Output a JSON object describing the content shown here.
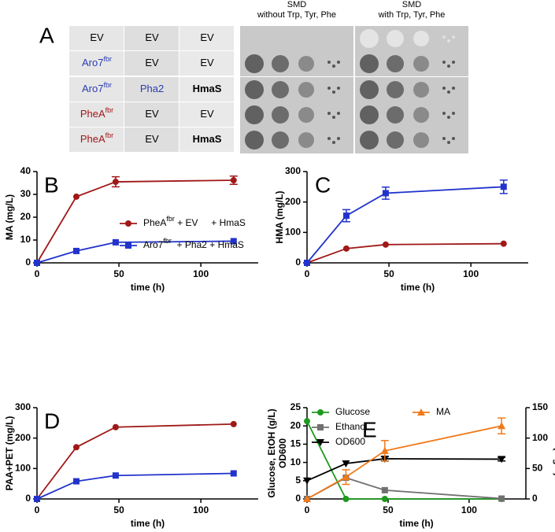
{
  "panel_a": {
    "label": "A",
    "headers": [
      [
        "SMD",
        "without Trp, Tyr, Phe"
      ],
      [
        "SMD",
        "with Trp, Tyr, Phe"
      ]
    ],
    "rows": [
      [
        {
          "text": "EV",
          "color": "#000000"
        },
        {
          "text": "EV",
          "color": "#000000"
        },
        {
          "text": "EV",
          "color": "#000000"
        }
      ],
      [
        {
          "text": "Aro7",
          "sup": "fbr",
          "color": "#2b3bb0"
        },
        {
          "text": "EV",
          "color": "#000000"
        },
        {
          "text": "EV",
          "color": "#000000"
        }
      ],
      [
        {
          "text": "Aro7",
          "sup": "fbr",
          "color": "#2b3bb0"
        },
        {
          "text": "Pha2",
          "color": "#2b3bb0"
        },
        {
          "text": "HmaS",
          "color": "#000000",
          "bold": true
        }
      ],
      [
        {
          "text": "PheA",
          "sup": "fbr",
          "color": "#a01818"
        },
        {
          "text": "EV",
          "color": "#000000"
        },
        {
          "text": "EV",
          "color": "#000000"
        }
      ],
      [
        {
          "text": "PheA",
          "sup": "fbr",
          "color": "#a01818"
        },
        {
          "text": "EV",
          "color": "#000000"
        },
        {
          "text": "HmaS",
          "color": "#000000",
          "bold": true
        }
      ]
    ]
  },
  "chart_data": [
    {
      "type": "line",
      "label": "B",
      "xlabel": "time (h)",
      "ylabel": "MA (mg/L)",
      "x": [
        0,
        24,
        48,
        120
      ],
      "xlim": [
        0,
        135
      ],
      "xticks": [
        0,
        50,
        100
      ],
      "ylim": [
        0,
        40
      ],
      "yticks": [
        0,
        10,
        20,
        30,
        40
      ],
      "series": [
        {
          "name": "PheA",
          "name_sup": "fbr",
          "name_suffix": " + EV     + HmaS",
          "color": "#a01818",
          "marker": "circle",
          "values": [
            0,
            29,
            35.5,
            36.2
          ],
          "errors": [
            null,
            null,
            2.2,
            1.8
          ]
        },
        {
          "name": "Aro7",
          "name_sup": "fbr",
          "name_suffix": "  + Pha2 + HmaS",
          "color": "#2233cc",
          "marker": "square",
          "values": [
            0,
            5.2,
            9,
            9.5
          ],
          "errors": [
            null,
            null,
            null,
            null
          ]
        }
      ]
    },
    {
      "type": "line",
      "label": "C",
      "xlabel": "time (h)",
      "ylabel": "HMA (mg/L)",
      "x": [
        0,
        24,
        48,
        120
      ],
      "xlim": [
        0,
        135
      ],
      "xticks": [
        0,
        50,
        100
      ],
      "ylim": [
        0,
        300
      ],
      "yticks": [
        0,
        100,
        200,
        300
      ],
      "series": [
        {
          "color": "#a01818",
          "marker": "circle",
          "values": [
            0,
            47,
            60,
            63
          ],
          "errors": [
            null,
            null,
            null,
            null
          ]
        },
        {
          "color": "#2233cc",
          "marker": "square",
          "values": [
            0,
            155,
            229,
            250
          ],
          "errors": [
            null,
            20,
            20,
            22
          ]
        }
      ]
    },
    {
      "type": "line",
      "label": "D",
      "xlabel": "time (h)",
      "ylabel": "PAA+PET (mg/L)",
      "x": [
        0,
        24,
        48,
        120
      ],
      "xlim": [
        0,
        135
      ],
      "xticks": [
        0,
        50,
        100
      ],
      "ylim": [
        0,
        300
      ],
      "yticks": [
        0,
        100,
        200,
        300
      ],
      "series": [
        {
          "color": "#a01818",
          "marker": "circle",
          "values": [
            0,
            170,
            236,
            246
          ],
          "errors": [
            null,
            null,
            null,
            null
          ]
        },
        {
          "color": "#2233cc",
          "marker": "square",
          "values": [
            0,
            58,
            77,
            84
          ],
          "errors": [
            null,
            null,
            null,
            null
          ]
        }
      ]
    },
    {
      "type": "line",
      "label": "E",
      "xlabel": "time (h)",
      "ylabel": [
        "Glucose, EtOH (g/L)",
        "OD600"
      ],
      "y2label": "MA (mg/L)",
      "x": [
        0,
        24,
        48,
        120
      ],
      "xlim": [
        0,
        135
      ],
      "xticks": [
        0,
        50,
        100
      ],
      "ylim": [
        0,
        25
      ],
      "yticks": [
        0,
        5,
        10,
        15,
        20,
        25
      ],
      "y2lim": [
        0,
        150
      ],
      "y2ticks": [
        0,
        50,
        100,
        150
      ],
      "series": [
        {
          "name": "Glucose",
          "color": "#1e9a1e",
          "marker": "circle",
          "values": [
            21.3,
            0,
            0,
            0
          ],
          "errors": [
            null,
            null,
            null,
            null
          ]
        },
        {
          "name": "Ethanol",
          "color": "#707070",
          "marker": "square",
          "values": [
            0,
            5.8,
            2.4,
            0.1
          ],
          "errors": [
            null,
            null,
            null,
            null
          ]
        },
        {
          "name": "OD600",
          "color": "#000000",
          "marker": "tri-down",
          "values": [
            5,
            9.7,
            11,
            10.9
          ],
          "errors": [
            null,
            null,
            0.6,
            0.5
          ]
        },
        {
          "name": "MA",
          "color": "#f07a1a",
          "marker": "tri-up",
          "axis": "y2",
          "values": [
            0,
            36,
            79,
            120
          ],
          "errors": [
            null,
            12,
            17,
            13
          ]
        }
      ]
    }
  ]
}
